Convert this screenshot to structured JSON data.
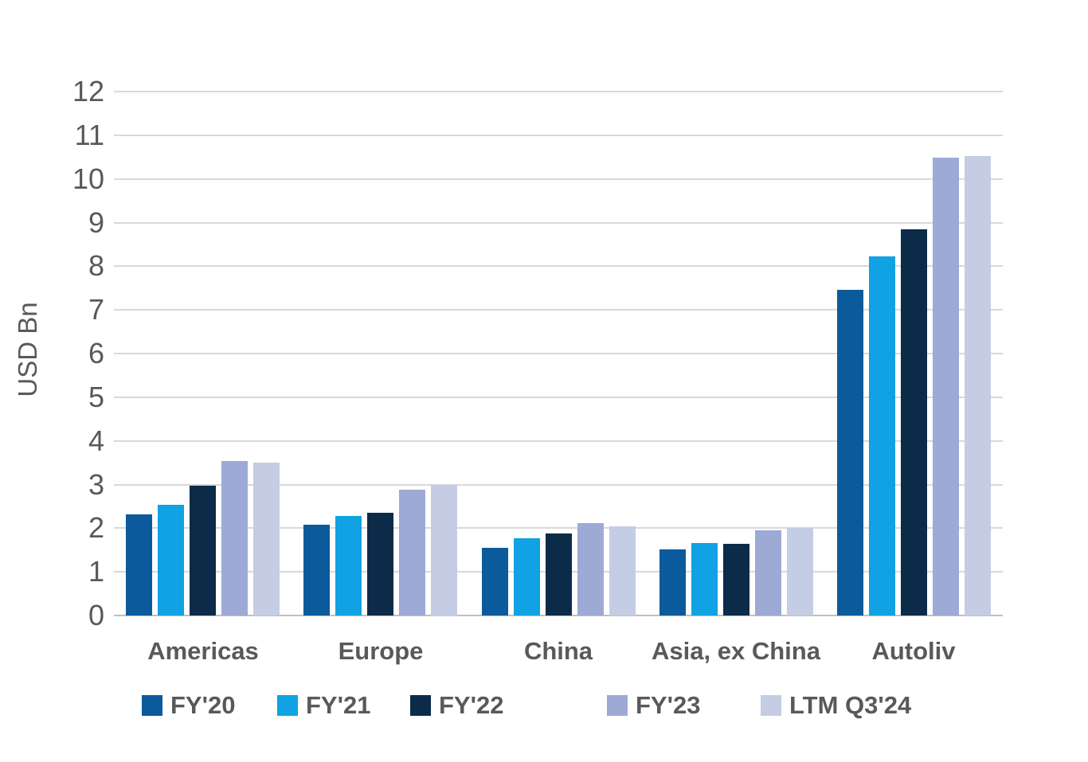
{
  "chart_data": {
    "type": "bar",
    "title": "",
    "xlabel": "",
    "ylabel": "USD Bn",
    "ylim": [
      0,
      12
    ],
    "yticks": [
      0,
      1,
      2,
      3,
      4,
      5,
      6,
      7,
      8,
      9,
      10,
      11,
      12
    ],
    "grid": true,
    "legend_position": "bottom",
    "categories": [
      "Americas",
      "Europe",
      "China",
      "Asia, ex China",
      "Autoliv"
    ],
    "series": [
      {
        "name": "FY'20",
        "color": "#0B5A9B",
        "values": [
          2.32,
          2.07,
          1.55,
          1.51,
          7.45
        ]
      },
      {
        "name": "FY'21",
        "color": "#10A2E2",
        "values": [
          2.53,
          2.28,
          1.77,
          1.66,
          8.23
        ]
      },
      {
        "name": "FY'22",
        "color": "#0B2B49",
        "values": [
          2.97,
          2.36,
          1.88,
          1.65,
          8.84
        ]
      },
      {
        "name": "FY'23",
        "color": "#9CAAD5",
        "values": [
          3.53,
          2.88,
          2.11,
          1.96,
          10.48
        ]
      },
      {
        "name": "LTM Q3'24",
        "color": "#C4CDE4",
        "values": [
          3.5,
          3.0,
          2.05,
          2.01,
          10.53
        ]
      }
    ]
  },
  "colors": {
    "text": "#595959",
    "gridline": "#D9D9D9",
    "axis_line": "#BFBFBF",
    "background": "#FFFFFF"
  }
}
